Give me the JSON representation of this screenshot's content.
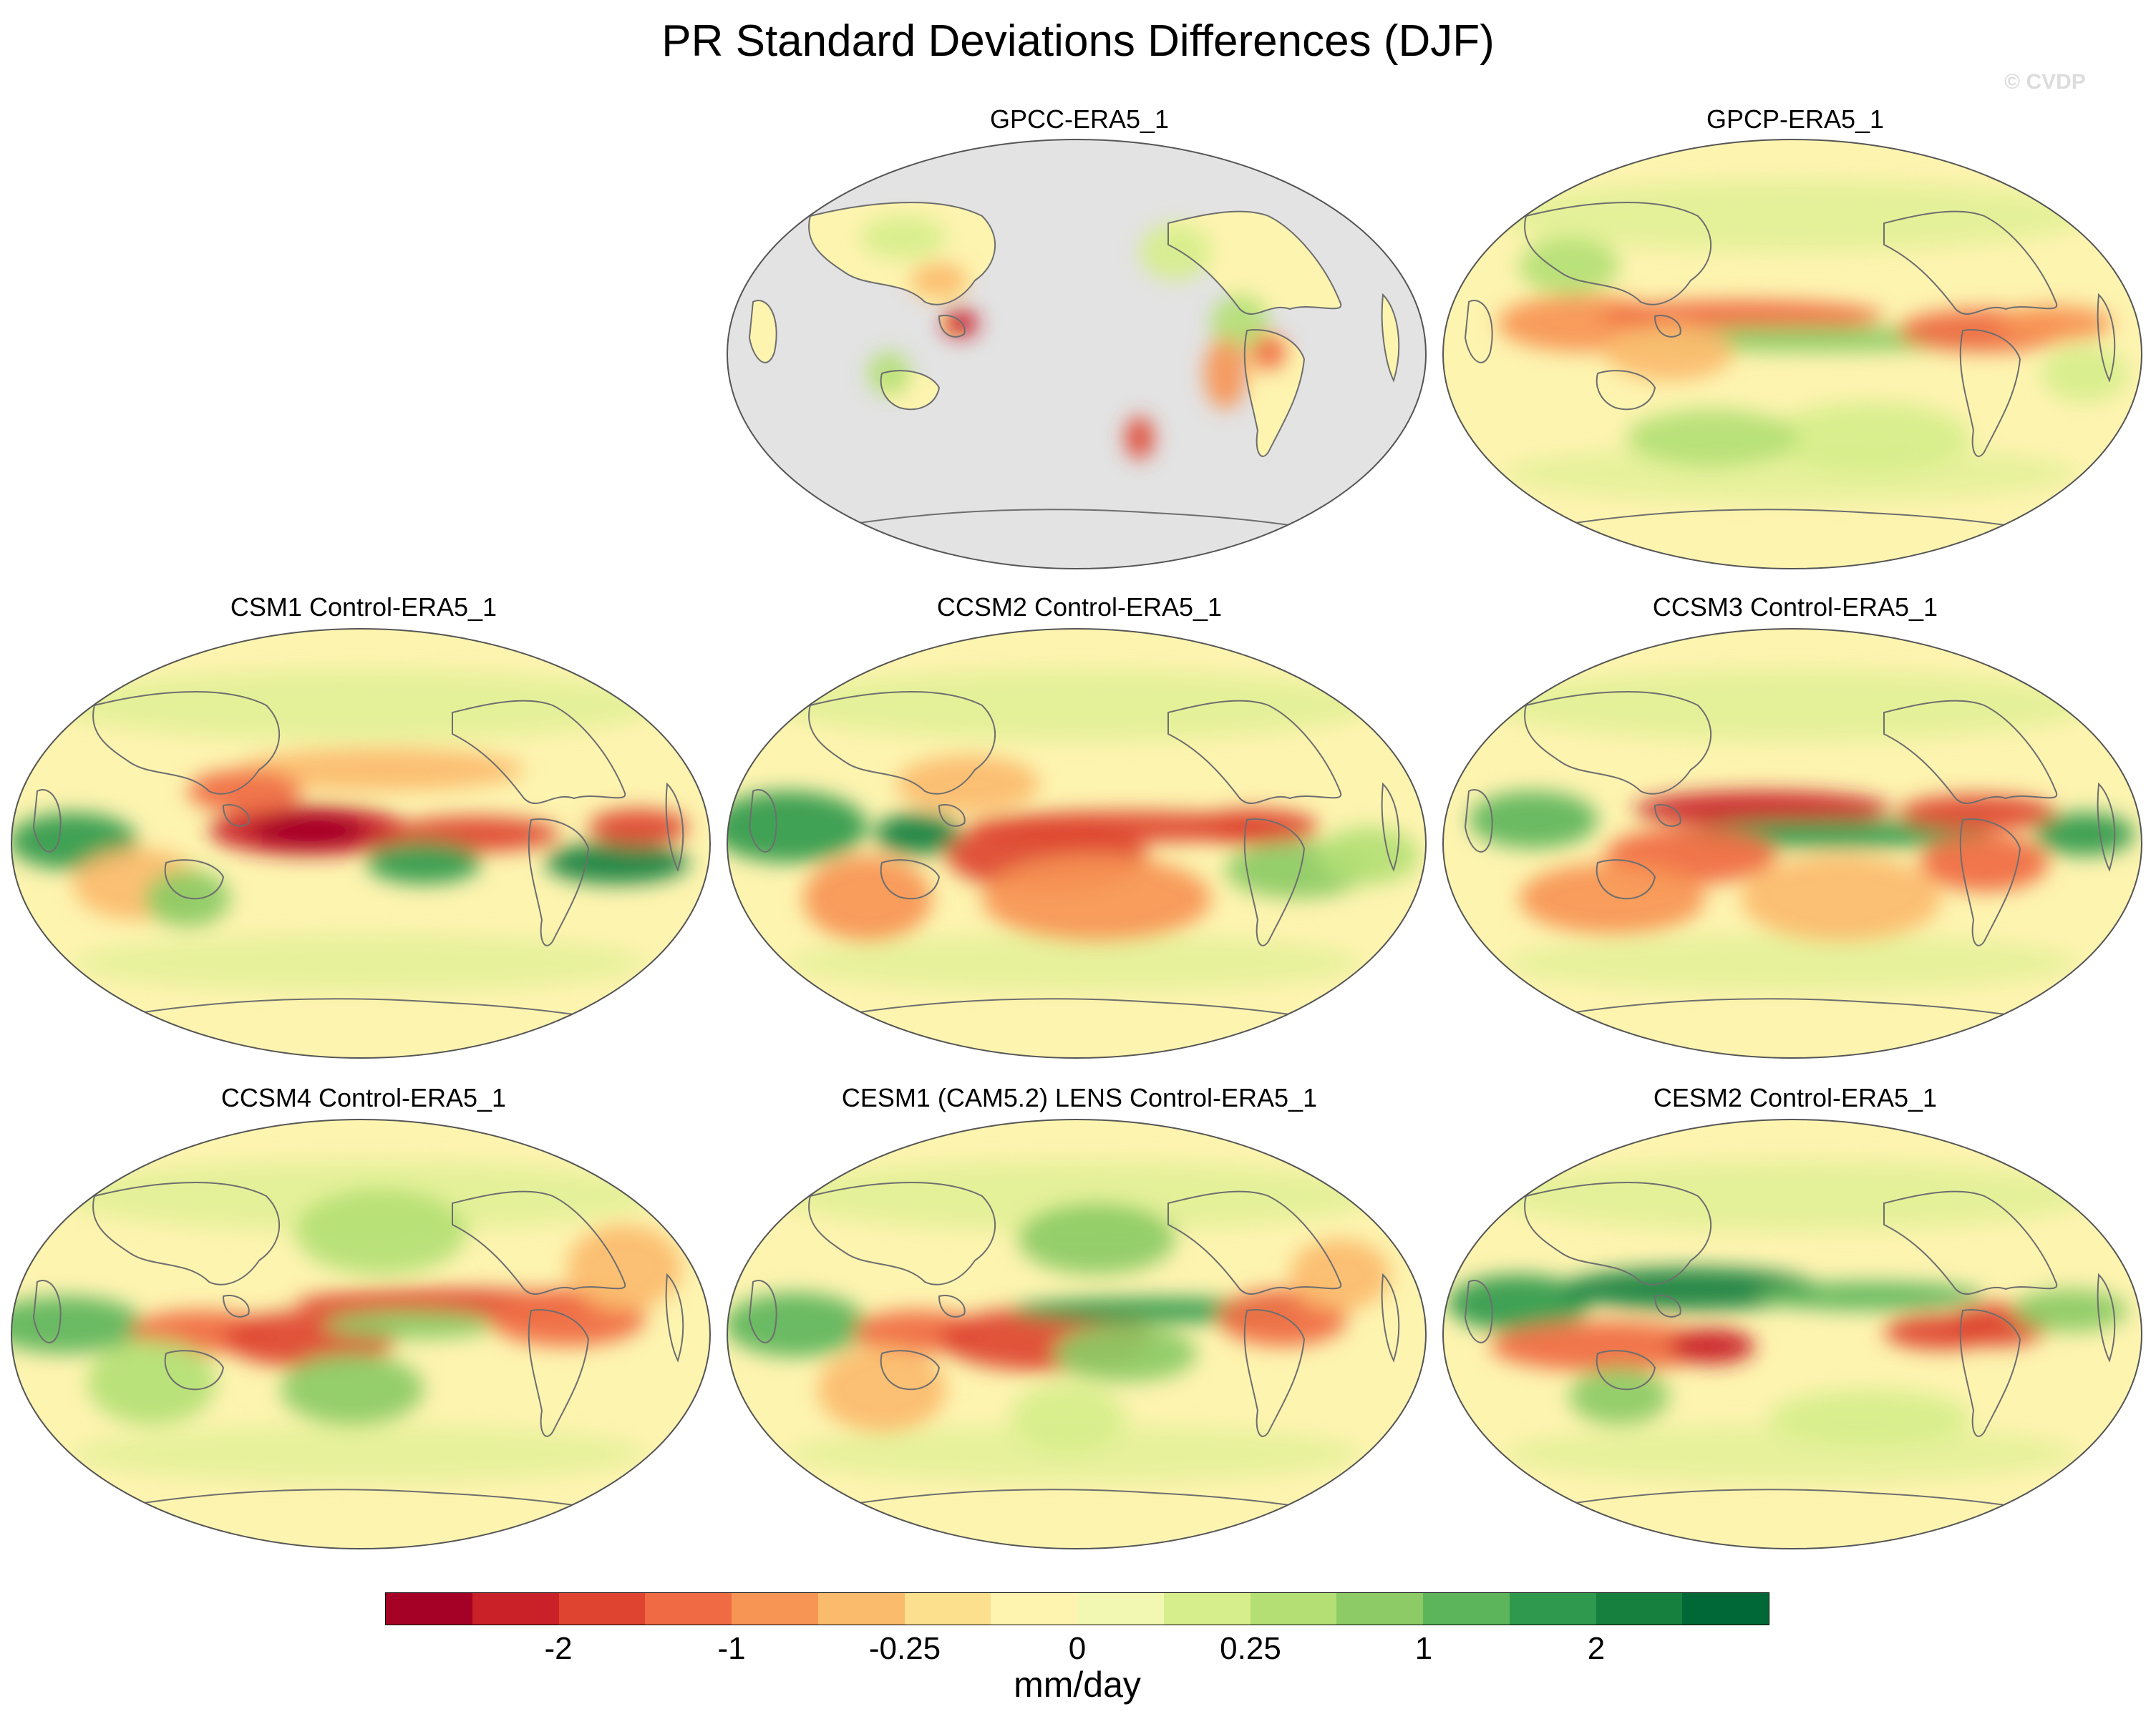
{
  "figure": {
    "title": "PR Standard Deviations Differences (DJF)",
    "credit": "© CVDP",
    "units": "mm/day"
  },
  "panels": [
    {
      "title": "GPCC-ERA5_1",
      "ocean_masked": true
    },
    {
      "title": "GPCP-ERA5_1",
      "ocean_masked": false
    },
    {
      "title": "CSM1 Control-ERA5_1",
      "ocean_masked": false
    },
    {
      "title": "CCSM2 Control-ERA5_1",
      "ocean_masked": false
    },
    {
      "title": "CCSM3 Control-ERA5_1",
      "ocean_masked": false
    },
    {
      "title": "CCSM4 Control-ERA5_1",
      "ocean_masked": false
    },
    {
      "title": "CESM1 (CAM5.2) LENS Control-ERA5_1",
      "ocean_masked": false
    },
    {
      "title": "CESM2 Control-ERA5_1",
      "ocean_masked": false
    }
  ],
  "colorbar": {
    "colors": [
      "#a50026",
      "#c92127",
      "#de4430",
      "#f06a43",
      "#f79554",
      "#fbbb6c",
      "#fde08d",
      "#fef4b0",
      "#f2f8b2",
      "#d6ee8b",
      "#b4df75",
      "#8ccb65",
      "#5db55b",
      "#2f9a4d",
      "#16803f",
      "#006837"
    ],
    "tick_labels": [
      "-2",
      "-1",
      "-0.25",
      "0",
      "0.25",
      "1",
      "2"
    ]
  },
  "colors": {
    "land_mask": "#e3e3e3",
    "background_neutral": "#fdf4b0",
    "coastline": "#6e6e6e"
  }
}
